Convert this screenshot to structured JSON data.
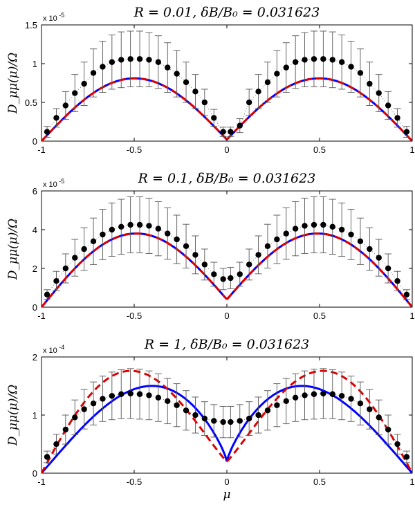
{
  "chart_data": [
    {
      "type": "line",
      "title": "R = 0.01, δB/B₀ = 0.031623",
      "ylabel": "D_μμ(μ)/Ω",
      "xlabel": "",
      "multiplier": "x 10",
      "multiplier_exp": "-5",
      "xlim": [
        -1,
        1
      ],
      "ylim": [
        0,
        1.5
      ],
      "xticks": [
        "-1",
        "-0.5",
        "0",
        "0.5",
        "1"
      ],
      "yticks": [
        "0",
        "0.5",
        "1",
        "1.5"
      ],
      "yticks_values": [
        0,
        0.5,
        1,
        1.5
      ],
      "series": [
        {
          "name": "theory-solid",
          "color": "#0000ff",
          "style": "solid",
          "peak": 0.81,
          "peak_pos": 0.5,
          "end": 0.02
        },
        {
          "name": "theory-dashed",
          "color": "#dd0000",
          "style": "dashed",
          "peak": 0.81,
          "peak_pos": 0.5,
          "end": 0.02
        },
        {
          "name": "simulation",
          "color": "#000000",
          "style": "points",
          "x": [
            -0.97,
            -0.92,
            -0.87,
            -0.82,
            -0.77,
            -0.72,
            -0.67,
            -0.62,
            -0.57,
            -0.52,
            -0.47,
            -0.42,
            -0.37,
            -0.32,
            -0.27,
            -0.22,
            -0.17,
            -0.12,
            -0.07,
            -0.02,
            0.02,
            0.07,
            0.12,
            0.17,
            0.22,
            0.27,
            0.32,
            0.37,
            0.42,
            0.47,
            0.52,
            0.57,
            0.62,
            0.67,
            0.72,
            0.77,
            0.82,
            0.87,
            0.92,
            0.97
          ],
          "y": [
            0.12,
            0.3,
            0.46,
            0.62,
            0.74,
            0.88,
            0.96,
            1.02,
            1.05,
            1.06,
            1.06,
            1.05,
            1.02,
            0.95,
            0.87,
            0.76,
            0.64,
            0.5,
            0.3,
            0.12,
            0.12,
            0.2,
            0.5,
            0.64,
            0.76,
            0.87,
            0.95,
            1.02,
            1.05,
            1.06,
            1.06,
            1.05,
            1.02,
            0.96,
            0.88,
            0.74,
            0.62,
            0.46,
            0.3,
            0.12
          ],
          "err": [
            0.07,
            0.12,
            0.18,
            0.24,
            0.28,
            0.31,
            0.33,
            0.35,
            0.36,
            0.36,
            0.36,
            0.35,
            0.34,
            0.32,
            0.3,
            0.26,
            0.22,
            0.17,
            0.11,
            0.06,
            0.06,
            0.09,
            0.17,
            0.22,
            0.26,
            0.3,
            0.32,
            0.34,
            0.35,
            0.36,
            0.36,
            0.36,
            0.35,
            0.33,
            0.31,
            0.28,
            0.24,
            0.18,
            0.12,
            0.07
          ]
        }
      ]
    },
    {
      "type": "line",
      "title": "R = 0.1, δB/B₀ = 0.031623",
      "ylabel": "D_μμ(μ)/Ω",
      "xlabel": "",
      "multiplier": "x 10",
      "multiplier_exp": "-5",
      "xlim": [
        -1,
        1
      ],
      "ylim": [
        0,
        6
      ],
      "xticks": [
        "-1",
        "-0.5",
        "0",
        "0.5",
        "1"
      ],
      "yticks": [
        "0",
        "2",
        "4",
        "6"
      ],
      "yticks_values": [
        0,
        2,
        4,
        6
      ],
      "series": [
        {
          "name": "theory-solid",
          "color": "#0000ff",
          "style": "solid",
          "peak": 3.8,
          "peak_pos": 0.5,
          "end": 0.4
        },
        {
          "name": "theory-dashed",
          "color": "#dd0000",
          "style": "dashed",
          "peak": 3.8,
          "peak_pos": 0.5,
          "end": 0.4
        },
        {
          "name": "simulation",
          "color": "#000000",
          "style": "points",
          "x": [
            -0.97,
            -0.92,
            -0.87,
            -0.82,
            -0.77,
            -0.72,
            -0.67,
            -0.62,
            -0.57,
            -0.52,
            -0.47,
            -0.42,
            -0.37,
            -0.32,
            -0.27,
            -0.22,
            -0.17,
            -0.12,
            -0.07,
            -0.02,
            0.02,
            0.07,
            0.12,
            0.17,
            0.22,
            0.27,
            0.32,
            0.37,
            0.42,
            0.47,
            0.52,
            0.57,
            0.62,
            0.67,
            0.72,
            0.77,
            0.82,
            0.87,
            0.92,
            0.97
          ],
          "y": [
            0.65,
            1.35,
            2.0,
            2.55,
            3.0,
            3.4,
            3.75,
            4.0,
            4.15,
            4.25,
            4.25,
            4.2,
            4.05,
            3.8,
            3.5,
            3.15,
            2.7,
            2.2,
            1.7,
            1.45,
            1.5,
            1.7,
            2.2,
            2.7,
            3.15,
            3.5,
            3.8,
            4.05,
            4.2,
            4.25,
            4.25,
            4.15,
            4.0,
            3.75,
            3.4,
            3.0,
            2.55,
            2.0,
            1.35,
            0.65
          ],
          "err": [
            0.25,
            0.5,
            0.75,
            0.95,
            1.1,
            1.2,
            1.3,
            1.38,
            1.42,
            1.45,
            1.45,
            1.43,
            1.4,
            1.33,
            1.25,
            1.13,
            0.98,
            0.8,
            0.62,
            0.55,
            0.55,
            0.62,
            0.8,
            0.98,
            1.13,
            1.25,
            1.33,
            1.4,
            1.43,
            1.45,
            1.45,
            1.42,
            1.38,
            1.3,
            1.2,
            1.1,
            0.95,
            0.75,
            0.5,
            0.25
          ]
        }
      ]
    },
    {
      "type": "line",
      "title": "R = 1, δB/B₀ = 0.031623",
      "ylabel": "D_μμ(μ)/Ω",
      "xlabel": "μ",
      "multiplier": "x 10",
      "multiplier_exp": "-4",
      "xlim": [
        -1,
        1
      ],
      "ylim": [
        0,
        2
      ],
      "xticks": [
        "-1",
        "-0.5",
        "0",
        "0.5",
        "1"
      ],
      "yticks": [
        "0",
        "1",
        "2"
      ],
      "yticks_values": [
        0,
        1,
        2
      ],
      "series": [
        {
          "name": "theory-solid",
          "color": "#0000ff",
          "style": "solid",
          "peak": 1.5,
          "peak_pos": 0.42,
          "end": 0.2
        },
        {
          "name": "theory-dashed",
          "color": "#dd0000",
          "style": "dashed",
          "peak": 1.76,
          "peak_pos": 0.53,
          "end": 0.2
        },
        {
          "name": "simulation",
          "color": "#000000",
          "style": "points",
          "x": [
            -0.97,
            -0.92,
            -0.87,
            -0.82,
            -0.77,
            -0.72,
            -0.67,
            -0.62,
            -0.57,
            -0.52,
            -0.47,
            -0.42,
            -0.37,
            -0.32,
            -0.27,
            -0.22,
            -0.17,
            -0.12,
            -0.07,
            -0.02,
            0.02,
            0.07,
            0.12,
            0.17,
            0.22,
            0.27,
            0.32,
            0.37,
            0.42,
            0.47,
            0.52,
            0.57,
            0.62,
            0.67,
            0.72,
            0.77,
            0.82,
            0.87,
            0.92,
            0.97
          ],
          "y": [
            0.28,
            0.5,
            0.75,
            0.96,
            1.1,
            1.2,
            1.28,
            1.33,
            1.36,
            1.37,
            1.36,
            1.34,
            1.3,
            1.24,
            1.17,
            1.08,
            1.0,
            0.94,
            0.9,
            0.88,
            0.88,
            0.9,
            0.94,
            1.0,
            1.08,
            1.17,
            1.24,
            1.3,
            1.34,
            1.36,
            1.37,
            1.36,
            1.33,
            1.28,
            1.2,
            1.1,
            0.96,
            0.75,
            0.5,
            0.28
          ],
          "err": [
            0.1,
            0.17,
            0.25,
            0.3,
            0.34,
            0.37,
            0.39,
            0.41,
            0.42,
            0.43,
            0.43,
            0.42,
            0.41,
            0.39,
            0.37,
            0.34,
            0.31,
            0.29,
            0.28,
            0.27,
            0.27,
            0.28,
            0.29,
            0.31,
            0.34,
            0.37,
            0.39,
            0.41,
            0.42,
            0.43,
            0.43,
            0.42,
            0.41,
            0.39,
            0.37,
            0.34,
            0.3,
            0.25,
            0.17,
            0.1
          ]
        }
      ]
    }
  ]
}
